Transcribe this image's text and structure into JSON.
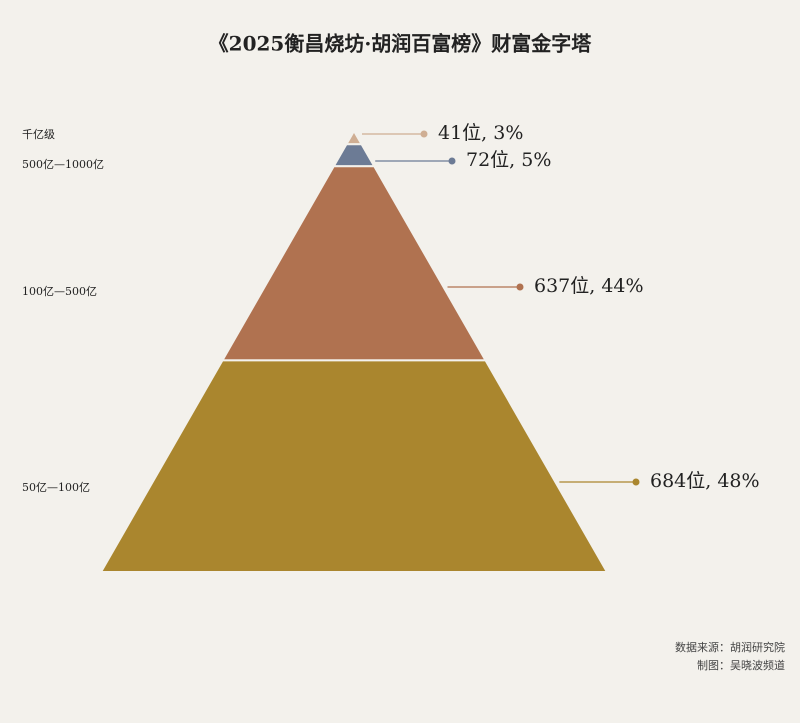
{
  "chart_data": {
    "type": "pyramid",
    "title": "《2025衡昌烧坊·胡润百富榜》财富金字塔",
    "categories": [
      "千亿级",
      "500亿—1000亿",
      "100亿—500亿",
      "50亿—100亿"
    ],
    "values": [
      3,
      5,
      44,
      48
    ],
    "value_labels": [
      "41位, 3%",
      "72位, 5%",
      "637位, 44%",
      "684位, 48%"
    ],
    "colors": [
      "#cfae93",
      "#6c7b95",
      "#b07250",
      "#aa862e"
    ],
    "source": "数据来源：胡润研究院",
    "credit": "制图：吴晓波频道"
  }
}
